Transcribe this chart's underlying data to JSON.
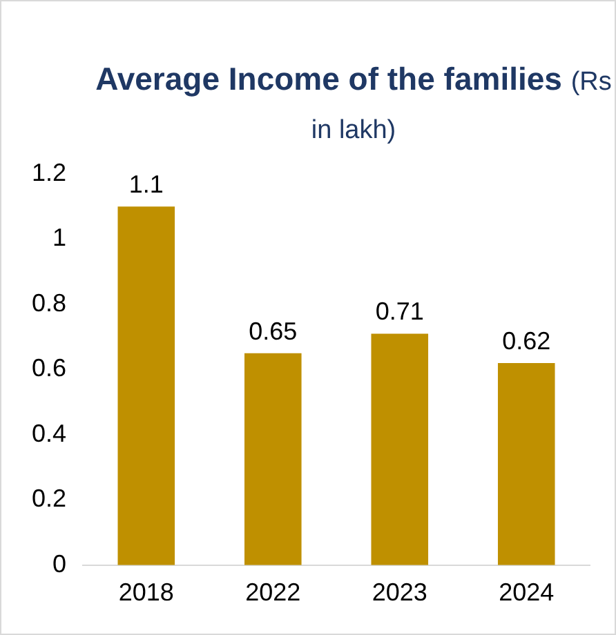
{
  "chart_data": {
    "type": "bar",
    "title": "Average Income of the families",
    "subtitle": "(Rs in lakh)",
    "categories": [
      "2018",
      "2022",
      "2023",
      "2024"
    ],
    "values": [
      1.1,
      0.65,
      0.71,
      0.62
    ],
    "color": "#bf9000",
    "ylim": [
      0,
      1.2
    ],
    "yticks": [
      0,
      0.2,
      0.4,
      0.6,
      0.8,
      1,
      1.2
    ],
    "grid": false,
    "legend": false,
    "data_labels": true
  }
}
